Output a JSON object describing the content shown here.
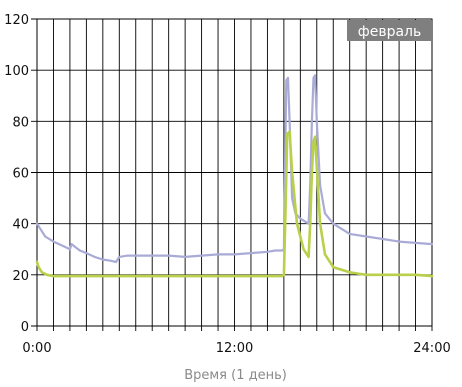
{
  "chart_data": {
    "type": "line",
    "title": "",
    "badge": "февраль",
    "xlabel": "Время (1 день)",
    "ylabel": "",
    "x_unit": "hours",
    "xlim": [
      0,
      24
    ],
    "ylim": [
      0,
      120
    ],
    "x_ticks": [
      0,
      12,
      24
    ],
    "x_tick_labels": [
      "0:00",
      "12:00",
      "24:00"
    ],
    "y_ticks": [
      0,
      20,
      40,
      60,
      80,
      100,
      120
    ],
    "y_tick_labels": [
      "0",
      "20",
      "40",
      "60",
      "80",
      "100",
      "120"
    ],
    "grid": true,
    "vertical_grid_interval_hours": 1,
    "colors": {
      "badge_bg": "#7f7f7f",
      "grid": "#000000",
      "series": [
        "#a9abd6",
        "#b9d04a"
      ]
    },
    "series": [
      {
        "x": [
          0,
          0.2,
          0.5,
          1.0,
          1.5,
          2.0,
          2.1,
          2.3,
          2.6,
          3.0,
          3.5,
          4.0,
          4.5,
          4.8,
          5.0,
          5.5,
          6,
          7,
          8,
          9,
          10,
          11,
          12,
          13,
          14,
          14.5,
          14.9,
          15.0,
          15.15,
          15.25,
          15.35,
          15.5,
          15.7,
          16.0,
          16.5,
          16.6,
          16.7,
          16.8,
          16.9,
          17.0,
          17.2,
          17.5,
          18,
          18.5,
          19,
          20,
          21,
          22,
          23,
          24
        ],
        "y": [
          40,
          38,
          35,
          33,
          31.5,
          30,
          32,
          31,
          29.5,
          28.5,
          27,
          26,
          25.5,
          25,
          27,
          27.5,
          27.5,
          27.5,
          27.5,
          27,
          27.5,
          28,
          28,
          28.5,
          29,
          29.5,
          29.5,
          30,
          96,
          97,
          80,
          50,
          44,
          42,
          40,
          55,
          80,
          97,
          98,
          80,
          55,
          44,
          40,
          38,
          36,
          35,
          34,
          33,
          32.5,
          32
        ]
      },
      {
        "x": [
          0,
          0.1,
          0.3,
          0.6,
          1,
          2,
          3,
          4,
          5,
          6,
          7,
          8,
          9,
          10,
          11,
          12,
          13,
          14,
          14.5,
          14.9,
          15.0,
          15.1,
          15.2,
          15.35,
          15.5,
          15.8,
          16.2,
          16.5,
          16.6,
          16.7,
          16.8,
          16.9,
          17.0,
          17.2,
          17.5,
          18,
          18.5,
          19,
          19.5,
          20,
          21,
          22,
          23,
          24
        ],
        "y": [
          25,
          23,
          21,
          20,
          19.5,
          19.5,
          19.5,
          19.5,
          19.5,
          19.5,
          19.5,
          19.5,
          19.5,
          19.5,
          19.5,
          19.5,
          19.5,
          19.5,
          19.5,
          19.5,
          20,
          45,
          75,
          76,
          60,
          40,
          30,
          27,
          40,
          60,
          72,
          74,
          62,
          40,
          28,
          23,
          22,
          21,
          20.5,
          20,
          20,
          20,
          20,
          19.5
        ]
      }
    ]
  }
}
